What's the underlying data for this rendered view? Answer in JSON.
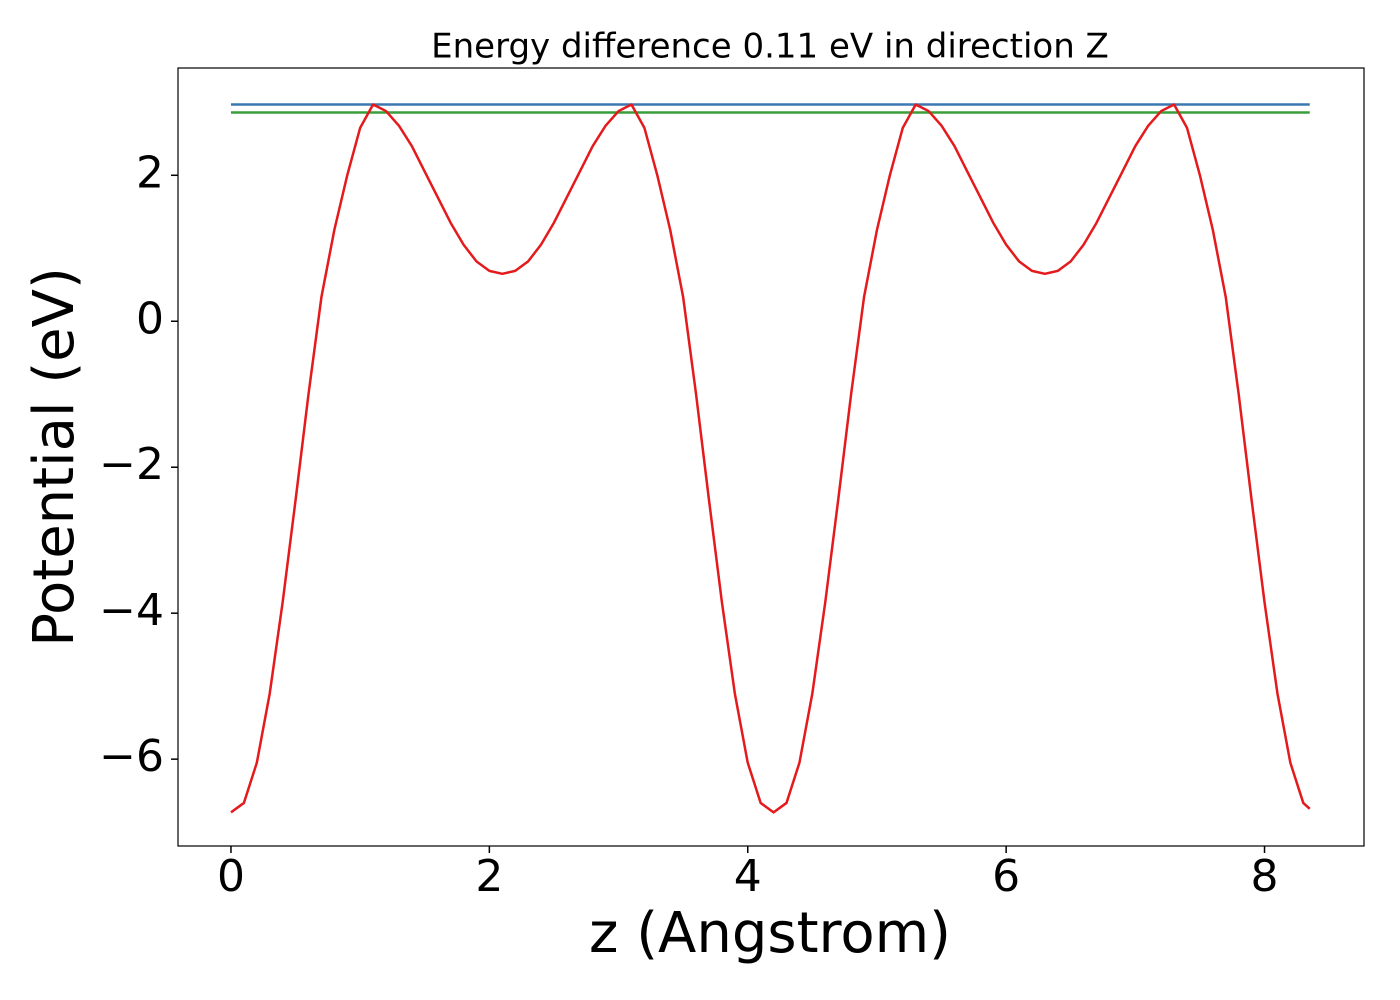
{
  "chart_data": {
    "type": "line",
    "title": "Energy difference 0.11 eV in direction Z",
    "x_label": "z (Angstrom)",
    "y_label": "Potential (eV)",
    "xlim": [
      -0.41,
      8.77
    ],
    "ylim": [
      -7.19,
      3.47
    ],
    "xticks": [
      0,
      2,
      4,
      6,
      8
    ],
    "yticks": [
      {
        "value": -6,
        "label": "−6"
      },
      {
        "value": -4,
        "label": "−4"
      },
      {
        "value": -2,
        "label": "−2"
      },
      0,
      2
    ],
    "grid": false,
    "series": [
      {
        "color": "#e41a1c",
        "x": [
          0,
          0.1,
          0.2,
          0.3,
          0.4,
          0.5,
          0.6,
          0.7,
          0.8,
          0.9,
          1.0,
          1.1,
          1.2,
          1.3,
          1.4,
          1.5,
          1.6,
          1.7,
          1.8,
          1.9,
          2.0,
          2.1,
          2.2,
          2.3,
          2.4,
          2.5,
          2.6,
          2.7,
          2.8,
          2.9,
          3.0,
          3.1,
          3.2,
          3.3,
          3.4,
          3.5,
          3.6,
          3.7,
          3.8,
          3.9,
          4.0,
          4.1,
          4.2,
          4.3,
          4.4,
          4.5,
          4.6,
          4.7,
          4.8,
          4.9,
          5.0,
          5.1,
          5.2,
          5.3,
          5.4,
          5.5,
          5.6,
          5.7,
          5.8,
          5.9,
          6.0,
          6.1,
          6.2,
          6.3,
          6.4,
          6.5,
          6.6,
          6.7,
          6.8,
          6.9,
          7.0,
          7.1,
          7.2,
          7.3,
          7.4,
          7.5,
          7.6,
          7.7,
          7.8,
          7.9,
          8.0,
          8.1,
          8.2,
          8.3,
          8.35
        ],
        "values": [
          -6.73,
          -6.6,
          -6.05,
          -5.1,
          -3.85,
          -2.45,
          -1.0,
          0.33,
          1.25,
          2.0,
          2.65,
          2.97,
          2.88,
          2.68,
          2.4,
          2.05,
          1.7,
          1.35,
          1.05,
          0.82,
          0.69,
          0.65,
          0.69,
          0.82,
          1.05,
          1.35,
          1.7,
          2.05,
          2.4,
          2.68,
          2.88,
          2.97,
          2.65,
          2.0,
          1.25,
          0.33,
          -1.0,
          -2.45,
          -3.85,
          -5.1,
          -6.05,
          -6.6,
          -6.73,
          -6.6,
          -6.05,
          -5.1,
          -3.85,
          -2.45,
          -1.0,
          0.33,
          1.25,
          2.0,
          2.65,
          2.97,
          2.88,
          2.68,
          2.4,
          2.05,
          1.7,
          1.35,
          1.05,
          0.82,
          0.69,
          0.65,
          0.69,
          0.82,
          1.05,
          1.35,
          1.7,
          2.05,
          2.4,
          2.68,
          2.88,
          2.97,
          2.65,
          2.0,
          1.25,
          0.33,
          -1.0,
          -2.45,
          -3.85,
          -5.1,
          -6.05,
          -6.6,
          -6.68
        ]
      },
      {
        "color": "#3b78b0",
        "x": [
          0,
          8.35
        ],
        "values": [
          2.97,
          2.97
        ]
      },
      {
        "color": "#3a9e3a",
        "x": [
          0,
          8.35
        ],
        "values": [
          2.86,
          2.86
        ]
      }
    ]
  }
}
